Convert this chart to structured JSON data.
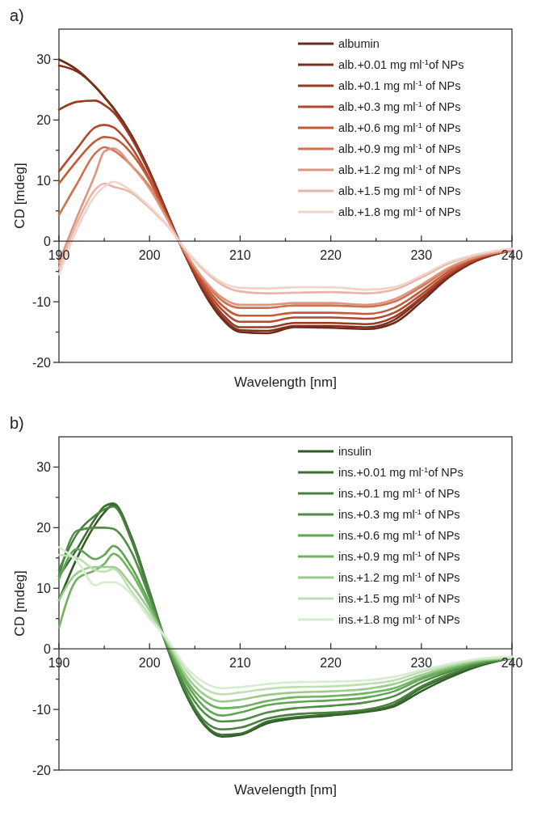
{
  "chart_data": [
    {
      "type": "line",
      "title": "a)",
      "xlabel": "Wavelength [nm]",
      "ylabel": "CD [mdeg]",
      "xlim": [
        190,
        240
      ],
      "ylim": [
        -20,
        35
      ],
      "xticks": [
        190,
        {
          "value": 195,
          "label": null
        },
        200,
        {
          "value": 205,
          "label": null
        },
        210,
        {
          "value": 215,
          "label": null
        },
        220,
        {
          "value": 225,
          "label": null
        },
        230,
        {
          "value": 235,
          "label": null
        },
        240
      ],
      "yticks": [
        -20,
        {
          "value": -15,
          "label": null
        },
        -10,
        {
          "value": -5,
          "label": null
        },
        0,
        {
          "value": 5,
          "label": null
        },
        10,
        {
          "value": 15,
          "label": null
        },
        20,
        {
          "value": 25,
          "label": null
        },
        30
      ],
      "legend": "top right",
      "marker": "none",
      "line_style": "solid",
      "x": [
        190,
        192,
        194,
        195,
        196,
        198,
        200,
        202,
        204,
        206,
        208,
        210,
        213,
        216,
        220,
        224,
        227,
        230,
        233,
        236,
        240
      ],
      "series": [
        {
          "name": "albumin",
          "color": "#6b2a1a",
          "values": [
            30,
            28.3,
            25.5,
            23.8,
            22,
            17.5,
            11.5,
            4.5,
            -2.5,
            -8.5,
            -12.8,
            -15,
            -15.2,
            -14.2,
            -14.3,
            -14.5,
            -13.5,
            -10,
            -6,
            -3.3,
            -1.5
          ]
        },
        {
          "name": "alb.+0.01 mg ml$^{-1}$of NPs",
          "color": "#7d2e1c",
          "values": [
            29,
            28,
            25.5,
            23.8,
            22,
            17.5,
            11.5,
            4.5,
            -2.5,
            -8.3,
            -12.5,
            -14.7,
            -14.8,
            -14,
            -14,
            -14.2,
            -13,
            -9.5,
            -5.8,
            -3.2,
            -1.5
          ]
        },
        {
          "name": "alb.+0.1 mg ml$^{-1}$ of NPs",
          "color": "#9a3a22",
          "values": [
            21.7,
            23,
            23.2,
            22.5,
            21.3,
            17,
            11.2,
            4.3,
            -2.5,
            -8,
            -12,
            -14.2,
            -14.2,
            -13.5,
            -13.5,
            -13.7,
            -12.5,
            -9.3,
            -5.6,
            -3.1,
            -1.5
          ]
        },
        {
          "name": "alb.+0.3 mg ml$^{-1}$ of NPs",
          "color": "#b04a2e",
          "values": [
            11.5,
            15.3,
            18.8,
            19.2,
            18.8,
            15.5,
            10.3,
            4,
            -2.3,
            -7.5,
            -11.3,
            -13.3,
            -13.3,
            -12.6,
            -12.6,
            -12.8,
            -11.8,
            -8.8,
            -5.4,
            -3,
            -1.5
          ]
        },
        {
          "name": "alb.+0.6 mg ml$^{-1}$ of NPs",
          "color": "#c55a3a",
          "values": [
            9.5,
            13.3,
            16.5,
            17.2,
            17,
            14.5,
            10,
            3.8,
            -2.2,
            -7,
            -10.6,
            -12.3,
            -12.3,
            -11.8,
            -11.8,
            -12,
            -11,
            -8.2,
            -5,
            -2.8,
            -1.5
          ]
        },
        {
          "name": "alb.+0.9 mg ml$^{-1}$ of NPs",
          "color": "#d0714f",
          "values": [
            4.3,
            9.5,
            14.5,
            15.5,
            15,
            12.5,
            9,
            3.6,
            -2,
            -6.5,
            -9.8,
            -11,
            -11,
            -10.6,
            -10.6,
            -10.8,
            -10,
            -7.5,
            -4.6,
            -2.7,
            -1.5
          ]
        },
        {
          "name": "alb.+1.2 mg ml$^{-1}$ of NPs",
          "color": "#de9580",
          "values": [
            -3.5,
            4,
            11,
            14.8,
            15.3,
            12.5,
            8.7,
            3.5,
            -2,
            -6.3,
            -9.3,
            -10.5,
            -10.5,
            -10.2,
            -10.2,
            -10.5,
            -9.6,
            -7.2,
            -4.4,
            -2.6,
            -1.5
          ]
        },
        {
          "name": "alb.+1.5 mg ml$^{-1}$ of NPs",
          "color": "#e8b5a6",
          "values": [
            -4.5,
            3,
            8.5,
            9.5,
            9,
            8,
            5.5,
            2.5,
            -1.5,
            -4.8,
            -7.2,
            -8.3,
            -8.6,
            -8.5,
            -8.4,
            -8.6,
            -8,
            -6,
            -3.7,
            -2.3,
            -1.3
          ]
        },
        {
          "name": "alb.+1.8 mg ml$^{-1}$ of NPs",
          "color": "#f2d3ca",
          "values": [
            -5.5,
            2,
            7.5,
            9,
            9.8,
            8.3,
            5.7,
            2.6,
            -1.4,
            -4.6,
            -6.8,
            -7.7,
            -7.8,
            -7.6,
            -7.6,
            -8,
            -7.6,
            -5.7,
            -3.5,
            -2.2,
            -1.2
          ]
        }
      ]
    },
    {
      "type": "line",
      "title": "b)",
      "xlabel": "Wavelength [nm]",
      "ylabel": "CD [mdeg]",
      "xlim": [
        190,
        240
      ],
      "ylim": [
        -20,
        35
      ],
      "xticks": [
        190,
        {
          "value": 195,
          "label": null
        },
        200,
        {
          "value": 205,
          "label": null
        },
        210,
        {
          "value": 215,
          "label": null
        },
        220,
        {
          "value": 225,
          "label": null
        },
        230,
        {
          "value": 235,
          "label": null
        },
        240
      ],
      "yticks": [
        -20,
        {
          "value": -15,
          "label": null
        },
        -10,
        {
          "value": -5,
          "label": null
        },
        0,
        {
          "value": 5,
          "label": null
        },
        10,
        {
          "value": 15,
          "label": null
        },
        20,
        {
          "value": 25,
          "label": null
        },
        30
      ],
      "legend": "top right",
      "marker": "none",
      "line_style": "solid",
      "x": [
        190,
        192,
        194,
        195,
        196,
        198,
        200,
        202,
        204,
        206,
        208,
        210,
        213,
        216,
        220,
        224,
        227,
        230,
        233,
        236,
        240
      ],
      "series": [
        {
          "name": "insulin",
          "color": "#2e5e25",
          "values": [
            8,
            15,
            20.5,
            22.5,
            23.8,
            18,
            9,
            0,
            -7.5,
            -12.5,
            -14.5,
            -14.2,
            -12.3,
            -11.5,
            -11,
            -10.4,
            -9.5,
            -7,
            -4.8,
            -3,
            -1.5
          ]
        },
        {
          "name": "ins.+0.01 mg ml$^{-1}$of NPs",
          "color": "#3b6e2f",
          "values": [
            12,
            16.5,
            21.5,
            23.5,
            24,
            18.5,
            9.5,
            0.2,
            -7.3,
            -12.3,
            -14.2,
            -14,
            -12,
            -11.3,
            -10.8,
            -10.2,
            -9.2,
            -6.5,
            -4.5,
            -2.8,
            -1.5
          ]
        },
        {
          "name": "ins.+0.1 mg ml$^{-1}$ of NPs",
          "color": "#4a8040",
          "values": [
            13,
            19,
            22,
            23,
            23.5,
            18,
            9.2,
            0.2,
            -7,
            -11.8,
            -13.3,
            -13,
            -11.5,
            -10.8,
            -10.5,
            -10,
            -8.8,
            -6.2,
            -4.2,
            -2.7,
            -1.5
          ]
        },
        {
          "name": "ins.+0.3 mg ml$^{-1}$ of NPs",
          "color": "#4e8d44",
          "values": [
            12,
            19.5,
            20,
            20,
            19.8,
            16,
            8.5,
            0.3,
            -6.3,
            -10.5,
            -12,
            -11.8,
            -10.5,
            -9.8,
            -9.4,
            -8.8,
            -7.8,
            -5.5,
            -3.8,
            -2.5,
            -1.5
          ]
        },
        {
          "name": "ins.+0.6 mg ml$^{-1}$ of NPs",
          "color": "#5fa552",
          "values": [
            11.5,
            16.5,
            14.8,
            15.5,
            17,
            13.5,
            7.5,
            0.5,
            -5.5,
            -9.5,
            -11,
            -10.5,
            -9.3,
            -8.8,
            -8.5,
            -8,
            -7,
            -5,
            -3.5,
            -2.3,
            -1.5
          ]
        },
        {
          "name": "ins.+0.9 mg ml$^{-1}$ of NPs",
          "color": "#72b363",
          "values": [
            3.5,
            11.5,
            13,
            14,
            15.7,
            12.5,
            7,
            0.8,
            -5,
            -8.5,
            -9.8,
            -9.6,
            -8.6,
            -8,
            -7.8,
            -7.3,
            -6.5,
            -4.7,
            -3.3,
            -2.2,
            -1.5
          ]
        },
        {
          "name": "ins.+1.2 mg ml$^{-1}$ of NPs",
          "color": "#9ccc8d",
          "values": [
            8,
            12.5,
            13.5,
            13.5,
            13.5,
            10.5,
            6.3,
            1,
            -4.3,
            -7.5,
            -8.7,
            -8.4,
            -7.6,
            -7.2,
            -7,
            -6.6,
            -5.8,
            -4.3,
            -3,
            -2,
            -1.5
          ]
        },
        {
          "name": "ins.+1.5 mg ml$^{-1}$ of NPs",
          "color": "#bfdfb3",
          "values": [
            15.5,
            15,
            13,
            12.7,
            13.2,
            9.5,
            5.5,
            1.3,
            -3.5,
            -6.5,
            -7.5,
            -7.2,
            -6.6,
            -6.3,
            -6.2,
            -5.8,
            -5.2,
            -3.8,
            -2.7,
            -1.8,
            -1.4
          ]
        },
        {
          "name": "ins.+1.8 mg ml$^{-1}$ of NPs",
          "color": "#d8ecd0",
          "values": [
            16.8,
            14.5,
            10.5,
            11,
            11,
            9,
            5,
            1.5,
            -3,
            -5.5,
            -6.5,
            -6.3,
            -5.8,
            -5.5,
            -5.4,
            -5.2,
            -4.6,
            -3.5,
            -2.5,
            -1.7,
            -1.3
          ]
        }
      ]
    }
  ]
}
